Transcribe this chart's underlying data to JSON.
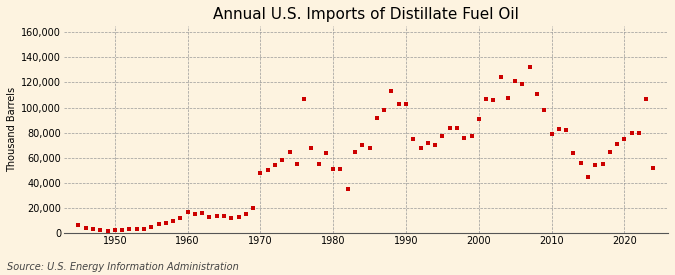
{
  "title": "Annual U.S. Imports of Distillate Fuel Oil",
  "ylabel": "Thousand Barrels",
  "source": "Source: U.S. Energy Information Administration",
  "background_color": "#fdf3e0",
  "plot_bg_color": "#fdf3e0",
  "marker_color": "#cc0000",
  "grid_color": "#999999",
  "spine_color": "#555555",
  "years": [
    1945,
    1946,
    1947,
    1948,
    1949,
    1950,
    1951,
    1952,
    1953,
    1954,
    1955,
    1956,
    1957,
    1958,
    1959,
    1960,
    1961,
    1962,
    1963,
    1964,
    1965,
    1966,
    1967,
    1968,
    1969,
    1970,
    1971,
    1972,
    1973,
    1974,
    1975,
    1976,
    1977,
    1978,
    1979,
    1980,
    1981,
    1982,
    1983,
    1984,
    1985,
    1986,
    1987,
    1988,
    1989,
    1990,
    1991,
    1992,
    1993,
    1994,
    1995,
    1996,
    1997,
    1998,
    1999,
    2000,
    2001,
    2002,
    2003,
    2004,
    2005,
    2006,
    2007,
    2008,
    2009,
    2010,
    2011,
    2012,
    2013,
    2014,
    2015,
    2016,
    2017,
    2018,
    2019,
    2020,
    2021,
    2022,
    2023,
    2024
  ],
  "values": [
    6200,
    4500,
    3200,
    2500,
    2000,
    3000,
    2800,
    3500,
    3200,
    3500,
    5000,
    7000,
    8000,
    10000,
    12000,
    17000,
    15000,
    16000,
    13000,
    14000,
    14000,
    12000,
    13000,
    15000,
    20000,
    48000,
    50000,
    54000,
    58000,
    65000,
    55000,
    107000,
    68000,
    55000,
    64000,
    51000,
    51000,
    35000,
    65000,
    70000,
    68000,
    92000,
    98000,
    113000,
    103000,
    103000,
    75000,
    68000,
    72000,
    70000,
    77000,
    84000,
    84000,
    76000,
    77000,
    91000,
    107000,
    106000,
    124000,
    108000,
    121000,
    119000,
    132000,
    111000,
    98000,
    79000,
    83000,
    82000,
    64000,
    56000,
    45000,
    54000,
    55000,
    65000,
    71000,
    75000,
    80000,
    80000,
    107000,
    52000
  ],
  "xlim": [
    1943,
    2026
  ],
  "ylim": [
    0,
    165000
  ],
  "yticks": [
    0,
    20000,
    40000,
    60000,
    80000,
    100000,
    120000,
    140000,
    160000
  ],
  "xticks": [
    1950,
    1960,
    1970,
    1980,
    1990,
    2000,
    2010,
    2020
  ],
  "title_fontsize": 11,
  "axis_fontsize": 7,
  "source_fontsize": 7,
  "marker_size": 9
}
